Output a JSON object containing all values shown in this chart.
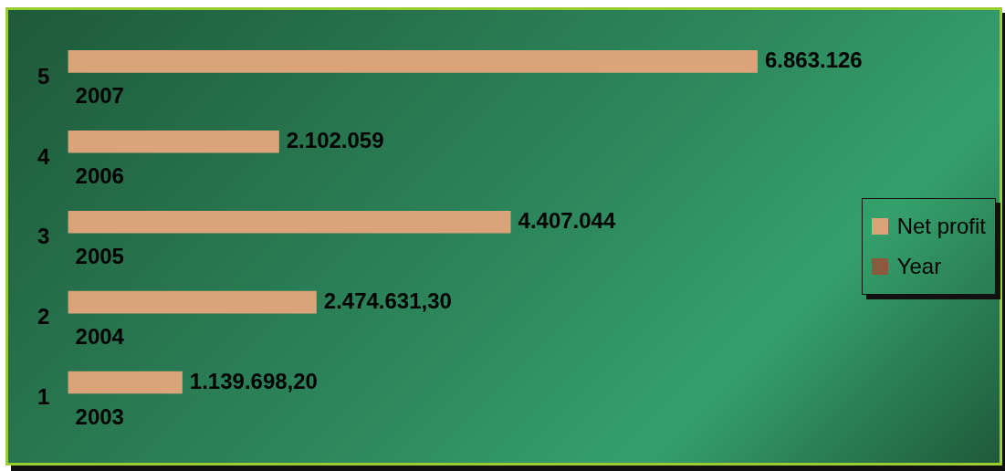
{
  "chart_data": {
    "type": "bar",
    "orientation": "horizontal",
    "categories": [
      "5",
      "4",
      "3",
      "2",
      "1"
    ],
    "legend": "right",
    "grid": false,
    "series": [
      {
        "name": "Net profit",
        "color": "#d9a47a",
        "values": [
          6863126,
          2102059,
          4407044,
          2474631.3,
          1139698.2
        ],
        "value_labels": [
          "6.863.126",
          "2.102.059",
          "4.407.044",
          "2.474.631,30",
          "1.139.698,20"
        ]
      },
      {
        "name": "Year",
        "color": "#8b5a3c",
        "values": [
          2007,
          2006,
          2005,
          2004,
          2003
        ],
        "value_labels": [
          "2007",
          "2006",
          "2005",
          "2004",
          "2003"
        ]
      }
    ]
  }
}
